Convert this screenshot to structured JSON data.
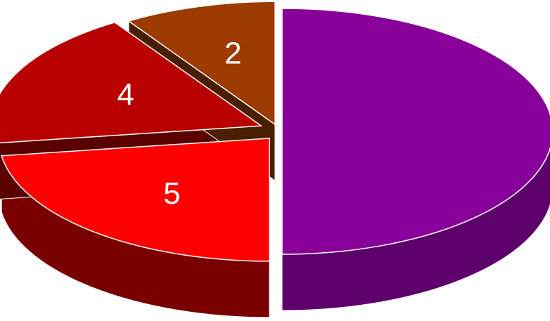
{
  "chart_data": {
    "type": "pie",
    "style": "3d-exploded",
    "title": "",
    "legend": false,
    "slices": [
      {
        "value": 11,
        "label": "",
        "top_color": "#880099",
        "side_color": "#5e006b"
      },
      {
        "value": 5,
        "label": "5",
        "top_color": "#ff0000",
        "side_color": "#7a0000"
      },
      {
        "value": 4,
        "label": "4",
        "top_color": "#b90000",
        "side_color": "#5a0000"
      },
      {
        "value": 2,
        "label": "2",
        "top_color": "#9c3a00",
        "side_color": "#4a1e00"
      }
    ]
  }
}
